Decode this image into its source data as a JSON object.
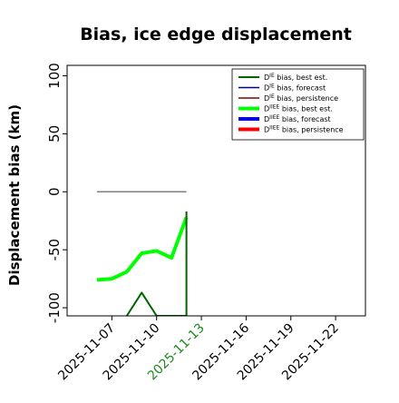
{
  "chart_data": {
    "type": "line",
    "title": "Bias, ice edge displacement",
    "xlabel": "",
    "ylabel": "Displacement bias (km)",
    "ylim": [
      -107,
      109
    ],
    "xlim": [
      "2025-11-04",
      "2025-11-24"
    ],
    "yticks": [
      100,
      50,
      0,
      -50,
      -100
    ],
    "xticks": [
      "2025-11-07",
      "2025-11-10",
      "2025-11-13",
      "2025-11-16",
      "2025-11-19",
      "2025-11-22"
    ],
    "highlighted_xtick": "2025-11-13",
    "highlight_color": "#1e8a1e",
    "grid": false,
    "legend_position": "top-right",
    "series": [
      {
        "name": "D^IE bias, best est.",
        "color": "#006400",
        "width": 2,
        "x": [
          "2025-11-08",
          "2025-11-09",
          "2025-11-10",
          "2025-11-11",
          "2025-11-12",
          "2025-11-12"
        ],
        "y": [
          -107,
          -87,
          -107,
          -107,
          -107,
          -17
        ]
      },
      {
        "name": "D^IE bias, forecast",
        "color": "#00008b",
        "width": 1.5,
        "x": [],
        "y": []
      },
      {
        "name": "D^IE bias, persistence",
        "color": "#800000",
        "width": 1.5,
        "x": [],
        "y": []
      },
      {
        "name": "D^IIEE bias, best est.",
        "color": "#00ff00",
        "width": 4,
        "x": [
          "2025-11-06",
          "2025-11-07",
          "2025-11-08",
          "2025-11-09",
          "2025-11-10",
          "2025-11-11",
          "2025-11-12"
        ],
        "y": [
          -76,
          -75,
          -69,
          -53,
          -51,
          -57,
          -22
        ]
      },
      {
        "name": "D^IIEE bias, forecast",
        "color": "#0000ff",
        "width": 4,
        "x": [],
        "y": []
      },
      {
        "name": "D^IIEE bias, persistence",
        "color": "#ff0000",
        "width": 4,
        "x": [],
        "y": []
      }
    ],
    "reference_line": {
      "color": "#808080",
      "x": [
        "2025-11-06",
        "2025-11-12"
      ],
      "y": [
        0,
        0
      ]
    }
  }
}
